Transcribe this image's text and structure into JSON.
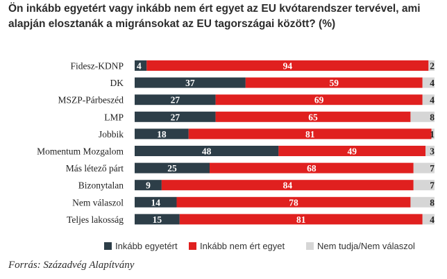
{
  "title": "Ön inkább egyetért vagy inkább nem ért egyet az EU kvótarendszer tervével, ami alapján elosztanák a migránsokat az EU tagországai között? (%)",
  "source": "Forrás: Századvég Alapítvány",
  "colors": {
    "agree": "#2d3e48",
    "disagree": "#e0201f",
    "dontknow": "#d6d6d6"
  },
  "chart_data": {
    "type": "bar",
    "orientation": "horizontal",
    "stacked": true,
    "categories": [
      "Fidesz-KDNP",
      "DK",
      "MSZP-Párbeszéd",
      "LMP",
      "Jobbik",
      "Momentum Mozgalom",
      "Más létező párt",
      "Bizonytalan",
      "Nem válaszol",
      "Teljes lakosság"
    ],
    "series": [
      {
        "name": "Inkább egyetért",
        "color": "#2d3e48",
        "values": [
          4,
          37,
          27,
          27,
          18,
          48,
          25,
          9,
          14,
          15
        ]
      },
      {
        "name": "Inkább nem ért egyet",
        "color": "#e0201f",
        "values": [
          94,
          59,
          69,
          65,
          81,
          49,
          68,
          84,
          78,
          81
        ]
      },
      {
        "name": "Nem tudja/Nem válaszol",
        "color": "#d6d6d6",
        "values": [
          2,
          4,
          4,
          8,
          1,
          3,
          7,
          7,
          8,
          4
        ]
      }
    ],
    "xlim": [
      0,
      100
    ],
    "legend": "bottom",
    "grid": false
  }
}
